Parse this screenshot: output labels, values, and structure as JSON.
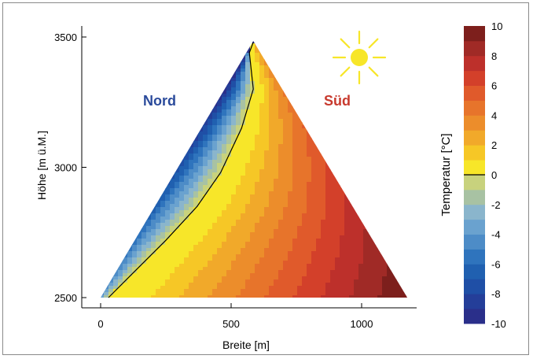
{
  "chart_data": {
    "type": "heatmap",
    "title": "",
    "xlabel": "Breite [m]",
    "ylabel": "Höhe [m ü.M.]",
    "xlim": [
      -75,
      1200
    ],
    "ylim": [
      2500,
      3500
    ],
    "x_ticks": [
      0,
      500,
      1000
    ],
    "y_ticks": [
      2500,
      3000,
      3500
    ],
    "mountain_outline": {
      "points": [
        [
          0,
          2500
        ],
        [
          585,
          3485
        ],
        [
          1175,
          2500
        ]
      ]
    },
    "zero_isotherm": {
      "label": "0",
      "points": [
        [
          30,
          2500
        ],
        [
          120,
          2590
        ],
        [
          250,
          2720
        ],
        [
          370,
          2850
        ],
        [
          460,
          2980
        ],
        [
          540,
          3150
        ],
        [
          585,
          3300
        ],
        [
          570,
          3440
        ],
        [
          585,
          3480
        ]
      ]
    },
    "side_labels": [
      {
        "text": "Nord",
        "color": "#2a4a9b"
      },
      {
        "text": "Süd",
        "color": "#c83a2e"
      }
    ],
    "colorbar": {
      "label": "Temperatur [°C]",
      "min": -10,
      "max": 10,
      "step": 1,
      "tick_labels": [
        "10",
        "8",
        "6",
        "4",
        "2",
        "0",
        "-2",
        "-4",
        "-6",
        "-8",
        "-10"
      ],
      "zero_marker": true,
      "colors": {
        "-10": "#2a2f8a",
        "-9": "#243e99",
        "-8": "#1f4fa6",
        "-7": "#2060b0",
        "-6": "#2f74bd",
        "-5": "#4d8cc7",
        "-4": "#6aa2cf",
        "-3": "#8ab5cc",
        "-2": "#a8c2a3",
        "-1": "#c8d27d",
        "0": "#e2dc5a",
        "1": "#f7e629",
        "2": "#f6c726",
        "3": "#f1a92a",
        "4": "#ec8d2b",
        "5": "#e7742b",
        "6": "#e05a2b",
        "7": "#d3402a",
        "8": "#bd302b",
        "9": "#a02a26",
        "10": "#7d1f1c"
      }
    }
  },
  "icons": {
    "sun": {
      "name": "sun-icon",
      "color": "#f7e629"
    }
  }
}
